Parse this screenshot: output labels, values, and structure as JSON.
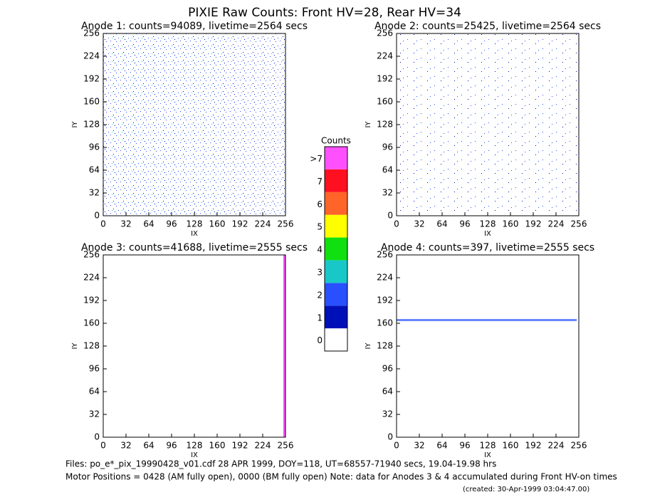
{
  "title": "PIXIE Raw Counts:  Front HV=28, Rear HV=34",
  "panels": [
    {
      "title": "Anode 1: counts=94089, livetime=2564 secs",
      "xlabel": "IX",
      "ylabel": "IY",
      "xlim": [
        0,
        256
      ],
      "ylim": [
        0,
        256
      ],
      "xticks": [
        0,
        32,
        64,
        96,
        128,
        160,
        192,
        224,
        256
      ],
      "yticks": [
        0,
        32,
        64,
        96,
        128,
        160,
        192,
        224,
        256
      ]
    },
    {
      "title": "Anode 2: counts=25425, livetime=2564 secs",
      "xlabel": "IX",
      "ylabel": "IY",
      "xlim": [
        0,
        256
      ],
      "ylim": [
        0,
        256
      ],
      "xticks": [
        0,
        32,
        64,
        96,
        128,
        160,
        192,
        224,
        256
      ],
      "yticks": [
        0,
        32,
        64,
        96,
        128,
        160,
        192,
        224,
        256
      ]
    },
    {
      "title": "Anode 3: counts=41688, livetime=2555 secs",
      "xlabel": "IX",
      "ylabel": "IY",
      "xlim": [
        0,
        256
      ],
      "ylim": [
        0,
        256
      ],
      "xticks": [
        0,
        32,
        64,
        96,
        128,
        160,
        192,
        224,
        256
      ],
      "yticks": [
        0,
        32,
        64,
        96,
        128,
        160,
        192,
        224,
        256
      ]
    },
    {
      "title": "Anode 4: counts=397, livetime=2555 secs",
      "xlabel": "IX",
      "ylabel": "IY",
      "xlim": [
        0,
        256
      ],
      "ylim": [
        0,
        256
      ],
      "xticks": [
        0,
        32,
        64,
        96,
        128,
        160,
        192,
        224,
        256
      ],
      "yticks": [
        0,
        32,
        64,
        96,
        128,
        160,
        192,
        224,
        256
      ]
    }
  ],
  "colorbar": {
    "title": "Counts",
    "labels": [
      "0",
      "1",
      "2",
      "3",
      "4",
      "5",
      "6",
      "7",
      ">7"
    ],
    "colors": [
      "#ffffff",
      "#0010b8",
      "#2850ff",
      "#18c8c8",
      "#10e010",
      "#ffff00",
      "#ff6428",
      "#ff1020",
      "#ff50ff"
    ]
  },
  "footer": [
    "Files: po_e*_pix_19990428_v01.cdf    28 APR 1999, DOY=118, UT=68557-71940 secs, 19.04-19.98 hrs",
    "Motor Positions = 0428 (AM fully open), 0000 (BM fully open)    Note: data for Anodes 3 & 4 accumulated during Front HV-on times",
    "(created: 30-Apr-1999 03:04:47.00)"
  ]
}
